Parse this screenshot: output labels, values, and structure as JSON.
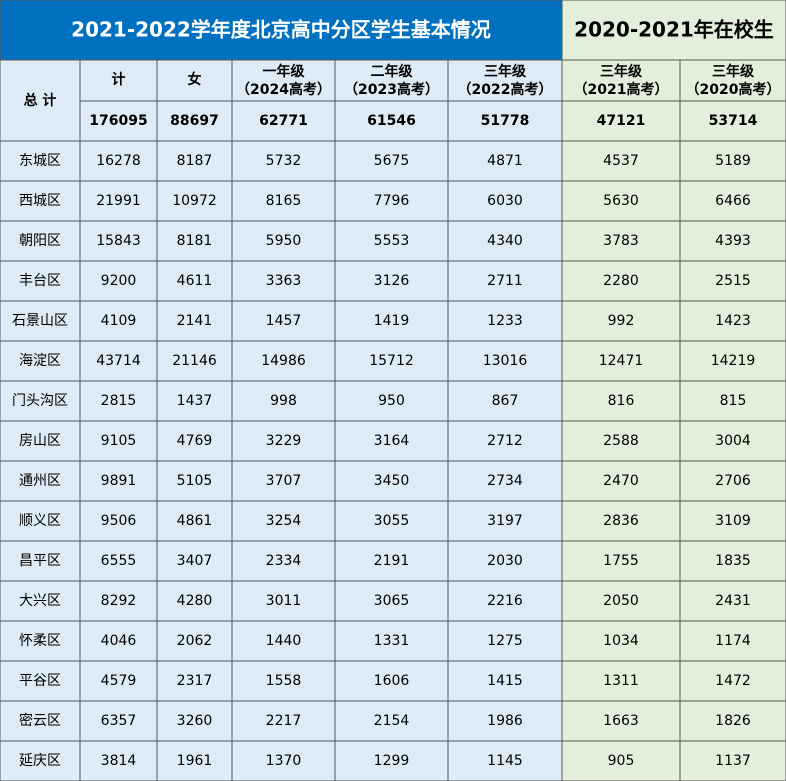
{
  "header": {
    "title_left": "2021-2022学年度北京高中分区学生基本情况",
    "title_right": "2020-2021年在校生"
  },
  "table": {
    "total_label": "总 计",
    "columns": [
      [
        "计"
      ],
      [
        "女"
      ],
      [
        "一年级",
        "（2024高考）"
      ],
      [
        "二年级",
        "（2023高考）"
      ],
      [
        "三年级",
        "（2022高考）"
      ],
      [
        "三年级",
        "（2021高考）"
      ],
      [
        "三年级",
        "（2020高考）"
      ]
    ],
    "totals": [
      176095,
      88697,
      62771,
      61546,
      51778,
      47121,
      53714
    ],
    "rows": [
      [
        "东城区",
        16278,
        8187,
        5732,
        5675,
        4871,
        4537,
        5189
      ],
      [
        "西城区",
        21991,
        10972,
        8165,
        7796,
        6030,
        5630,
        6466
      ],
      [
        "朝阳区",
        15843,
        8181,
        5950,
        5553,
        4340,
        3783,
        4393
      ],
      [
        "丰台区",
        9200,
        4611,
        3363,
        3126,
        2711,
        2280,
        2515
      ],
      [
        "石景山区",
        4109,
        2141,
        1457,
        1419,
        1233,
        992,
        1423
      ],
      [
        "海淀区",
        43714,
        21146,
        14986,
        15712,
        13016,
        12471,
        14219
      ],
      [
        "门头沟区",
        2815,
        1437,
        998,
        950,
        867,
        816,
        815
      ],
      [
        "房山区",
        9105,
        4769,
        3229,
        3164,
        2712,
        2588,
        3004
      ],
      [
        "通州区",
        9891,
        5105,
        3707,
        3450,
        2734,
        2470,
        2706
      ],
      [
        "顺义区",
        9506,
        4861,
        3254,
        3055,
        3197,
        2836,
        3109
      ],
      [
        "昌平区",
        6555,
        3407,
        2334,
        2191,
        2030,
        1755,
        1835
      ],
      [
        "大兴区",
        8292,
        4280,
        3011,
        3065,
        2216,
        2050,
        2431
      ],
      [
        "怀柔区",
        4046,
        2062,
        1440,
        1331,
        1275,
        1034,
        1174
      ],
      [
        "平谷区",
        4579,
        2317,
        1558,
        1606,
        1415,
        1311,
        1472
      ],
      [
        "密云区",
        6357,
        3260,
        2217,
        2154,
        1986,
        1663,
        1826
      ],
      [
        "延庆区",
        3814,
        1961,
        1370,
        1299,
        1145,
        905,
        1137
      ]
    ]
  }
}
